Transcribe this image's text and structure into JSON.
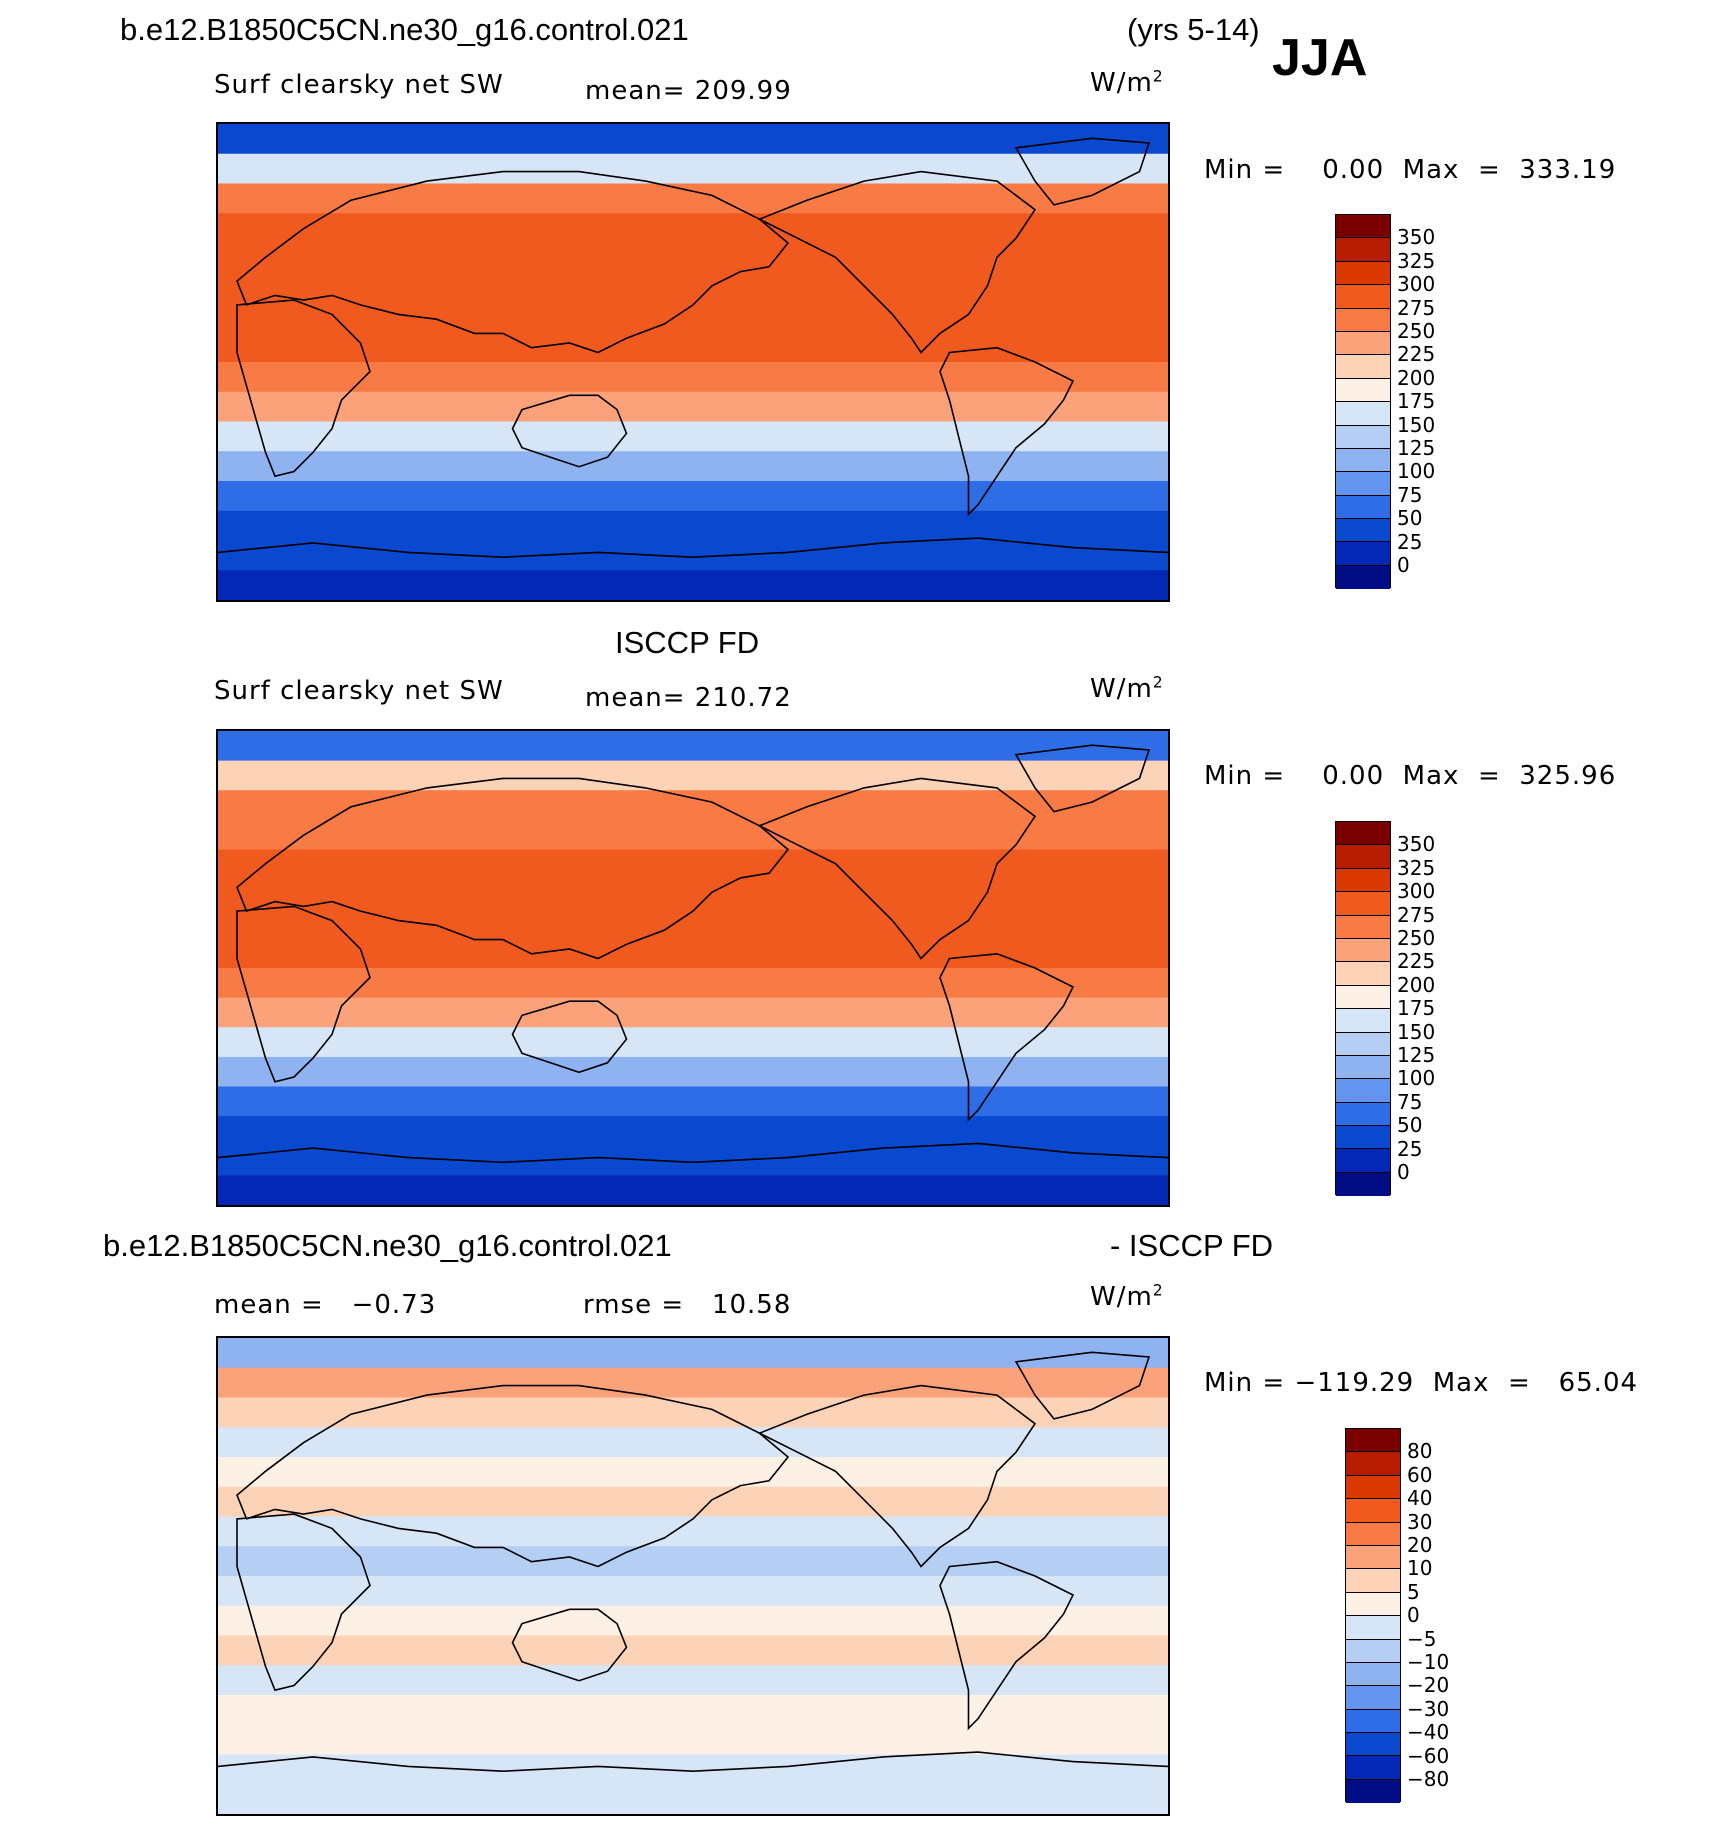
{
  "header": {
    "case_title": "b.e12.B1850C5CN.ne30_g16.control.021",
    "years": "(yrs 5-14)",
    "season": "JJA"
  },
  "panels": [
    {
      "id": "model",
      "left_label": "Surf clearsky net SW",
      "mean_text": "mean= 209.99",
      "units_base": "W/m",
      "units_exp": "2",
      "minmax_text": "Min =    0.00  Max  =  333.19"
    },
    {
      "id": "obs",
      "center_title": "ISCCP FD",
      "left_label": "Surf clearsky net SW",
      "mean_text": "mean= 210.72",
      "units_base": "W/m",
      "units_exp": "2",
      "minmax_text": "Min =    0.00  Max  =  325.96"
    },
    {
      "id": "diff",
      "diff_title_left": "b.e12.B1850C5CN.ne30_g16.control.021",
      "diff_title_right": "- ISCCP FD",
      "mean_text": "mean =   −0.73",
      "rmse_text": "rmse =   10.58",
      "units_base": "W/m",
      "units_exp": "2",
      "minmax_text": "Min = −119.29  Max  =   65.04"
    }
  ],
  "chart_data": [
    {
      "type": "heatmap",
      "title": "Surf clearsky net SW",
      "subtitle": "b.e12.B1850C5CN.ne30_g16.control.021 (yrs 5-14) JJA",
      "units": "W/m2",
      "mean": 209.99,
      "min": 0.0,
      "max": 333.19,
      "colorbar_levels": [
        0,
        25,
        50,
        75,
        100,
        125,
        150,
        175,
        200,
        225,
        250,
        275,
        300,
        325,
        350
      ],
      "colorbar_labels": [
        "350",
        "325",
        "300",
        "275",
        "250",
        "225",
        "200",
        "175",
        "150",
        "125",
        "100",
        "75",
        "50",
        "25",
        "0"
      ],
      "colorbar_colors": [
        "#7a0000",
        "#b51c00",
        "#d93800",
        "#f05a1e",
        "#f87a45",
        "#fca27a",
        "#fdd3b8",
        "#fdf0e5",
        "#d6e6f7",
        "#b5cef4",
        "#8fb2f1",
        "#6394ef",
        "#2f6de6",
        "#0a48cf",
        "#0328b8",
        "#000d84"
      ],
      "lat_band_values": [
        40,
        150,
        270,
        280,
        275,
        280,
        290,
        285,
        270,
        230,
        170,
        120,
        70,
        40,
        25,
        15
      ],
      "projection": "cylindrical equidistant, Pacific-centered"
    },
    {
      "type": "heatmap",
      "title": "Surf clearsky net SW",
      "subtitle": "ISCCP FD",
      "units": "W/m2",
      "mean": 210.72,
      "min": 0.0,
      "max": 325.96,
      "colorbar_levels": [
        0,
        25,
        50,
        75,
        100,
        125,
        150,
        175,
        200,
        225,
        250,
        275,
        300,
        325,
        350
      ],
      "colorbar_labels": [
        "350",
        "325",
        "300",
        "275",
        "250",
        "225",
        "200",
        "175",
        "150",
        "125",
        "100",
        "75",
        "50",
        "25",
        "0"
      ],
      "colorbar_colors": [
        "#7a0000",
        "#b51c00",
        "#d93800",
        "#f05a1e",
        "#f87a45",
        "#fca27a",
        "#fdd3b8",
        "#fdf0e5",
        "#d6e6f7",
        "#b5cef4",
        "#8fb2f1",
        "#6394ef",
        "#2f6de6",
        "#0a48cf",
        "#0328b8",
        "#000d84"
      ],
      "lat_band_values": [
        60,
        200,
        260,
        270,
        275,
        285,
        290,
        285,
        270,
        230,
        170,
        120,
        70,
        40,
        25,
        15
      ],
      "projection": "cylindrical equidistant, Pacific-centered"
    },
    {
      "type": "heatmap",
      "title": "b.e12.B1850C5CN.ne30_g16.control.021 - ISCCP FD",
      "units": "W/m2",
      "mean": -0.73,
      "rmse": 10.58,
      "min": -119.29,
      "max": 65.04,
      "colorbar_levels": [
        -80,
        -60,
        -40,
        -30,
        -20,
        -10,
        -5,
        0,
        5,
        10,
        20,
        30,
        40,
        60,
        80
      ],
      "colorbar_labels": [
        "80",
        "60",
        "40",
        "30",
        "20",
        "10",
        "5",
        "0",
        "−5",
        "−10",
        "−20",
        "−30",
        "−40",
        "−60",
        "−80"
      ],
      "colorbar_colors": [
        "#7a0000",
        "#b51c00",
        "#d93800",
        "#f05a1e",
        "#f87a45",
        "#fca27a",
        "#fdd3b8",
        "#fdf0e5",
        "#d6e6f7",
        "#b5cef4",
        "#8fb2f1",
        "#6394ef",
        "#2f6de6",
        "#0a48cf",
        "#0328b8",
        "#000d84"
      ],
      "lat_band_values": [
        -20,
        10,
        5,
        -5,
        0,
        5,
        -5,
        -10,
        -5,
        0,
        5,
        -5,
        0,
        3,
        -5,
        -5
      ],
      "projection": "cylindrical equidistant, Pacific-centered"
    }
  ]
}
